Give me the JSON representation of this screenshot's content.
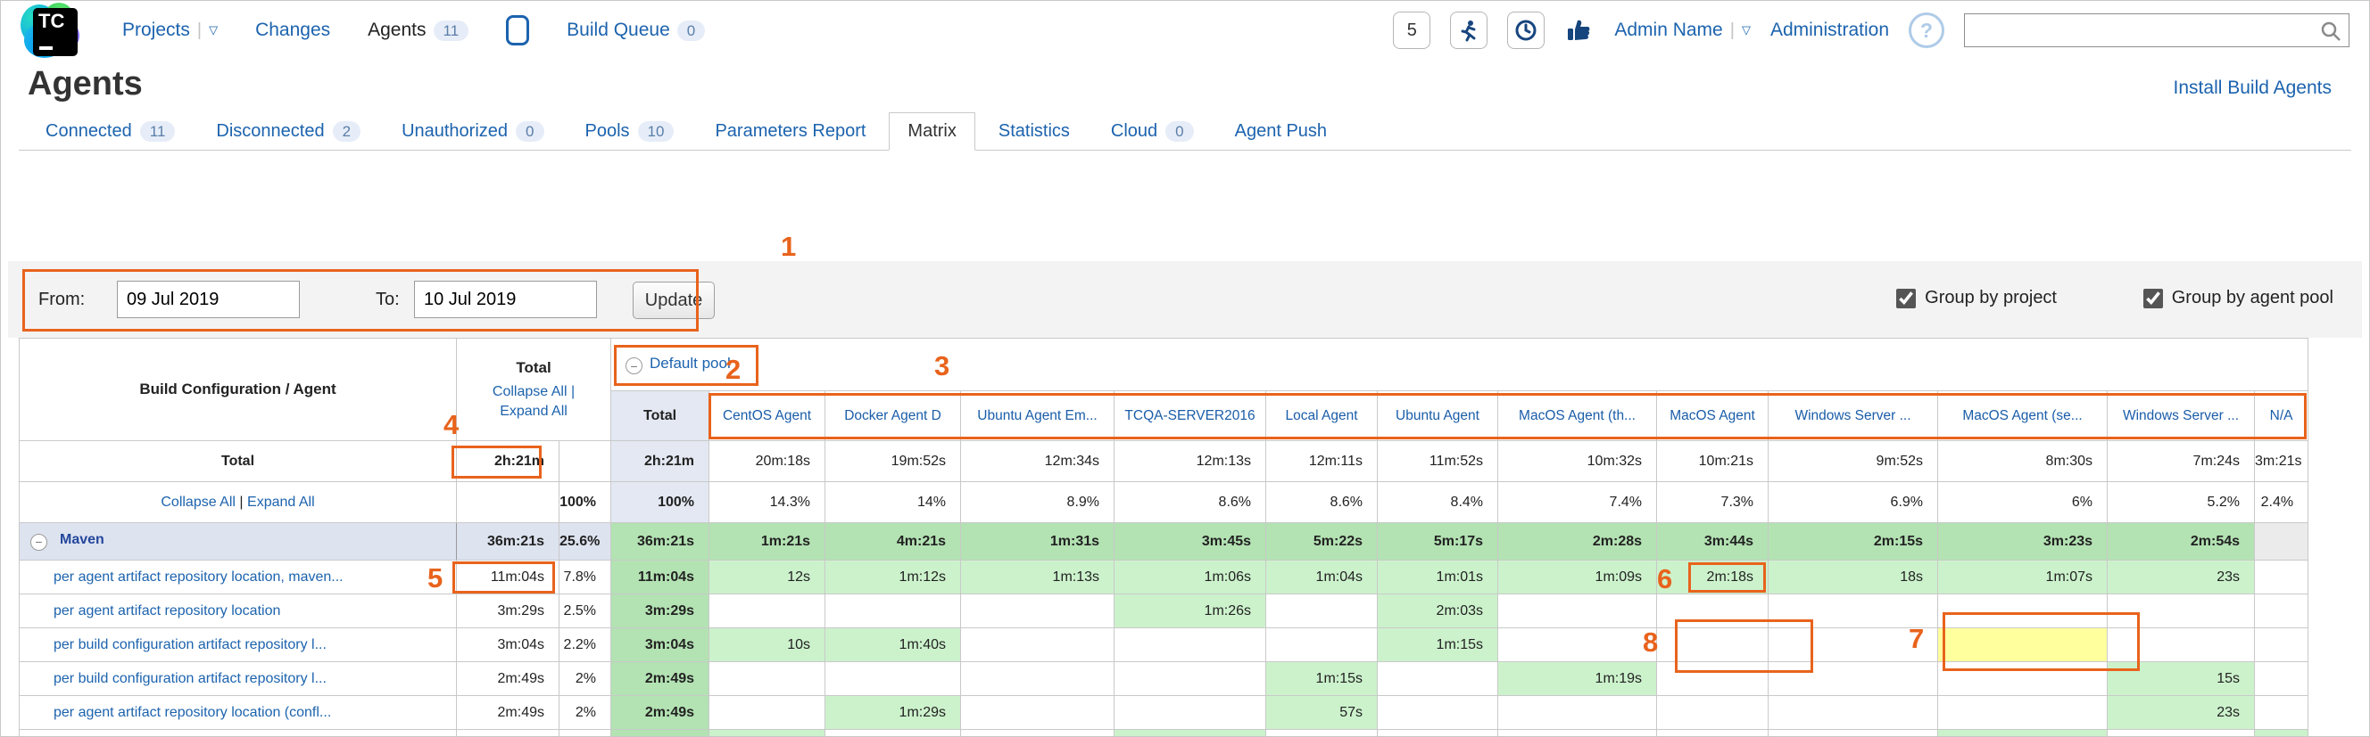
{
  "topnav": {
    "projects": "Projects",
    "changes": "Changes",
    "agents": "Agents",
    "agents_count": "11",
    "build_queue": "Build Queue",
    "build_queue_count": "0",
    "counter": "5",
    "user_name": "Admin Name",
    "administration": "Administration",
    "help": "?"
  },
  "page": {
    "title": "Agents",
    "install_agents_link": "Install Build Agents"
  },
  "tabs": [
    {
      "label": "Connected",
      "count": "11"
    },
    {
      "label": "Disconnected",
      "count": "2"
    },
    {
      "label": "Unauthorized",
      "count": "0"
    },
    {
      "label": "Pools",
      "count": "10"
    },
    {
      "label": "Parameters Report"
    },
    {
      "label": "Matrix",
      "active": true
    },
    {
      "label": "Statistics"
    },
    {
      "label": "Cloud",
      "count": "0"
    },
    {
      "label": "Agent Push"
    }
  ],
  "filter": {
    "from_label": "From:",
    "from_value": "09 Jul 2019",
    "to_label": "To:",
    "to_value": "10 Jul 2019",
    "update_label": "Update",
    "group_by_project": "Group by project",
    "group_by_agent_pool": "Group by agent pool"
  },
  "matrix": {
    "corner_header": "Build Configuration / Agent",
    "total_column": {
      "title": "Total",
      "collapse_all": "Collapse All |",
      "expand_all": "Expand All"
    },
    "pool_header": "Default pool",
    "columns": [
      "Total",
      "CentOS Agent",
      "Docker Agent D",
      "Ubuntu Agent Em...",
      "TCQA-SERVER2016",
      "Local Agent",
      "Ubuntu Agent",
      "MacOS Agent (th...",
      "MacOS Agent",
      "Windows Server ...",
      "MacOS Agent (se...",
      "Windows Server ...",
      "N/A"
    ],
    "total_row": {
      "label": "Total",
      "time": "2h:21m",
      "cells": [
        "2h:21m",
        "20m:18s",
        "19m:52s",
        "12m:34s",
        "12m:13s",
        "12m:11s",
        "11m:52s",
        "10m:32s",
        "10m:21s",
        "9m:52s",
        "8m:30s",
        "7m:24s",
        "3m:21s"
      ]
    },
    "percent_row": {
      "collapse_all": "Collapse All",
      "separator": " | ",
      "expand_all": "Expand All",
      "pct": "100%",
      "cells": [
        "100%",
        "14.3%",
        "14%",
        "8.9%",
        "8.6%",
        "8.6%",
        "8.4%",
        "7.4%",
        "7.3%",
        "6.9%",
        "6%",
        "5.2%",
        "2.4%"
      ]
    },
    "rows": [
      {
        "type": "group",
        "name": "Maven",
        "time": "36m:21s",
        "pct": "25.6%",
        "cells": [
          "36m:21s",
          "1m:21s",
          "4m:21s",
          "1m:31s",
          "3m:45s",
          "5m:22s",
          "5m:17s",
          "2m:28s",
          "3m:44s",
          "2m:15s",
          "3m:23s",
          "2m:54s",
          ""
        ]
      },
      {
        "type": "data",
        "name": "per agent artifact repository location, maven...",
        "time": "11m:04s",
        "pct": "7.8%",
        "cells": [
          "11m:04s",
          "12s",
          "1m:12s",
          "1m:13s",
          "1m:06s",
          "1m:04s",
          "1m:01s",
          "1m:09s",
          "2m:18s",
          "18s",
          "1m:07s",
          "23s",
          ""
        ]
      },
      {
        "type": "data",
        "name": "per agent artifact repository location",
        "time": "3m:29s",
        "pct": "2.5%",
        "cells": [
          "3m:29s",
          "",
          "",
          "",
          "1m:26s",
          "",
          "2m:03s",
          "",
          "",
          "",
          "",
          "",
          ""
        ]
      },
      {
        "type": "data",
        "name": "per build configuration artifact repository l...",
        "time": "3m:04s",
        "pct": "2.2%",
        "cells": [
          "3m:04s",
          "10s",
          "1m:40s",
          "",
          "",
          "",
          "1m:15s",
          "",
          "",
          "",
          "",
          "",
          ""
        ],
        "yellow_cell": 10
      },
      {
        "type": "data",
        "name": "per build configuration artifact repository l...",
        "time": "2m:49s",
        "pct": "2%",
        "cells": [
          "2m:49s",
          "",
          "",
          "",
          "",
          "1m:15s",
          "",
          "1m:19s",
          "",
          "",
          "",
          "15s",
          ""
        ]
      },
      {
        "type": "data",
        "name": "per agent artifact repository location (confl...",
        "time": "2m:49s",
        "pct": "2%",
        "cells": [
          "2m:49s",
          "",
          "1m:29s",
          "",
          "",
          "57s",
          "",
          "",
          "",
          "",
          "",
          "23s",
          ""
        ]
      }
    ],
    "partial_row_green_cols": [
      0,
      1,
      4,
      10,
      12
    ]
  },
  "annotations": {
    "labels": [
      "1",
      "2",
      "3",
      "4",
      "5",
      "6",
      "7",
      "8"
    ]
  },
  "colors": {
    "annotation_orange": "#e8631c",
    "green_group": "#b3e2b3",
    "green_value": "#ccf2cc",
    "yellow_highlight": "#ffff9e",
    "group_row_bg": "#dde3ef",
    "pool_total_col_bg": "#e3e8f2",
    "na_cell_gray": "#ebebeb",
    "link_blue": "#1c63ae"
  }
}
